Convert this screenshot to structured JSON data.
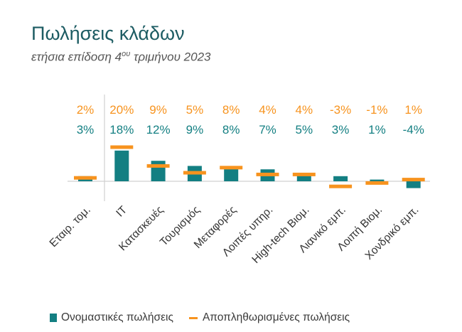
{
  "title": "Πωλήσεις κλάδων",
  "subtitle": {
    "prefix": "ετήσια επίδοση 4",
    "superscript": "ου",
    "suffix": " τριμήνου 2023"
  },
  "colors": {
    "nominal": "#137f82",
    "real": "#f7931e",
    "title": "#1d5c63"
  },
  "chart_data": {
    "type": "bar",
    "categories": [
      "Εταιρ. τομ.",
      "IT",
      "Κατασκευές",
      "Τουρισμός",
      "Μεταφορές",
      "Λοιπές υπηρ.",
      "High-tech Βιομ.",
      "Λιανικό εμπ.",
      "Λοιπή Βιομ.",
      "Χονδρικό εμπ."
    ],
    "series": [
      {
        "name": "Ονομαστικές πωλήσεις",
        "mark": "bar",
        "values": [
          3,
          18,
          12,
          9,
          8,
          7,
          5,
          3,
          1,
          -4
        ],
        "labels": [
          "3%",
          "18%",
          "12%",
          "9%",
          "8%",
          "7%",
          "5%",
          "3%",
          "1%",
          "-4%"
        ]
      },
      {
        "name": "Αποπληθωρισμένες πωλήσεις",
        "mark": "dash",
        "values": [
          2,
          20,
          9,
          5,
          8,
          4,
          4,
          -3,
          -1,
          1
        ],
        "labels": [
          "2%",
          "20%",
          "9%",
          "5%",
          "8%",
          "4%",
          "4%",
          "-3%",
          "-1%",
          "1%"
        ]
      }
    ],
    "grid": false,
    "legend": "bottom",
    "ylim": [
      -5,
      22
    ]
  }
}
